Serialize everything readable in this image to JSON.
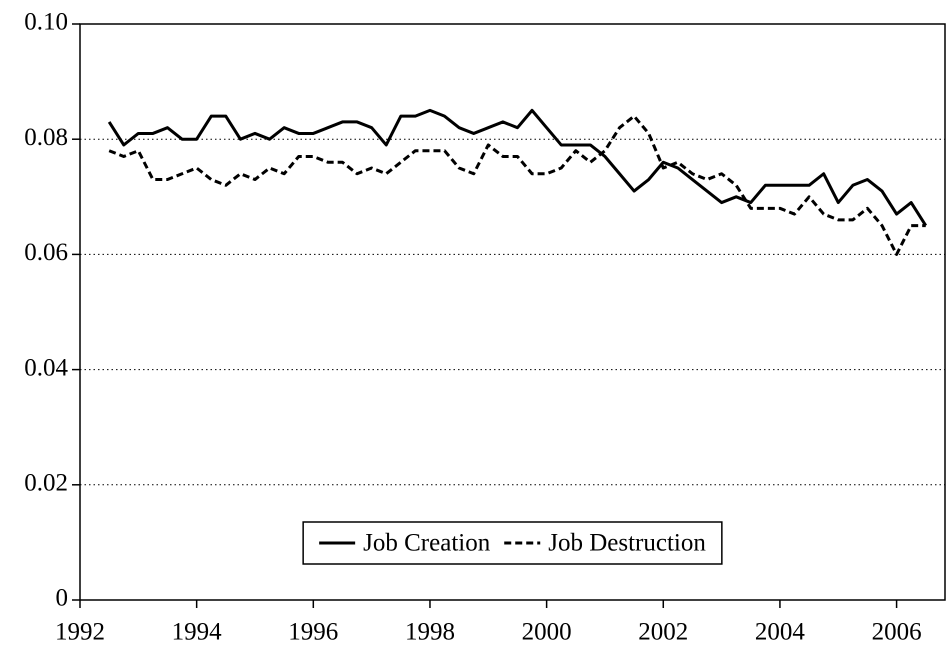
{
  "chart_data": {
    "type": "line",
    "x": [
      1992.5,
      1992.75,
      1993,
      1993.25,
      1993.5,
      1993.75,
      1994,
      1994.25,
      1994.5,
      1994.75,
      1995,
      1995.25,
      1995.5,
      1995.75,
      1996,
      1996.25,
      1996.5,
      1996.75,
      1997,
      1997.25,
      1997.5,
      1997.75,
      1998,
      1998.25,
      1998.5,
      1998.75,
      1999,
      1999.25,
      1999.5,
      1999.75,
      2000,
      2000.25,
      2000.5,
      2000.75,
      2001,
      2001.25,
      2001.5,
      2001.75,
      2002,
      2002.25,
      2002.5,
      2002.75,
      2003,
      2003.25,
      2003.5,
      2003.75,
      2004,
      2004.25,
      2004.5,
      2004.75,
      2005,
      2005.25,
      2005.5,
      2005.75,
      2006,
      2006.25,
      2006.5
    ],
    "series": [
      {
        "name": "Job Creation",
        "color": "#000000",
        "style": "solid",
        "values": [
          0.083,
          0.079,
          0.081,
          0.081,
          0.082,
          0.08,
          0.08,
          0.084,
          0.084,
          0.08,
          0.081,
          0.08,
          0.082,
          0.081,
          0.081,
          0.082,
          0.083,
          0.083,
          0.082,
          0.079,
          0.084,
          0.084,
          0.085,
          0.084,
          0.082,
          0.081,
          0.082,
          0.083,
          0.082,
          0.085,
          0.082,
          0.079,
          0.079,
          0.079,
          0.077,
          0.074,
          0.071,
          0.073,
          0.076,
          0.075,
          0.073,
          0.071,
          0.069,
          0.07,
          0.069,
          0.072,
          0.072,
          0.072,
          0.072,
          0.074,
          0.069,
          0.072,
          0.073,
          0.071,
          0.067,
          0.069,
          0.065
        ]
      },
      {
        "name": "Job Destruction",
        "color": "#000000",
        "style": "dashed",
        "values": [
          0.078,
          0.077,
          0.078,
          0.073,
          0.073,
          0.074,
          0.075,
          0.073,
          0.072,
          0.074,
          0.073,
          0.075,
          0.074,
          0.077,
          0.077,
          0.076,
          0.076,
          0.074,
          0.075,
          0.074,
          0.076,
          0.078,
          0.078,
          0.078,
          0.075,
          0.074,
          0.079,
          0.077,
          0.077,
          0.074,
          0.074,
          0.075,
          0.078,
          0.076,
          0.078,
          0.082,
          0.084,
          0.081,
          0.075,
          0.076,
          0.074,
          0.073,
          0.074,
          0.072,
          0.068,
          0.068,
          0.068,
          0.067,
          0.07,
          0.067,
          0.066,
          0.066,
          0.068,
          0.065,
          0.06,
          0.065,
          0.065
        ]
      }
    ],
    "xlim": [
      1992,
      2006.83
    ],
    "xticks": [
      1992,
      1994,
      1996,
      1998,
      2000,
      2002,
      2004,
      2006
    ],
    "ylim": [
      0,
      0.1
    ],
    "yticks": [
      0,
      0.02,
      0.04,
      0.06,
      0.08,
      {
        "value": 0.1,
        "label": "0.10"
      }
    ],
    "grid": true,
    "legend": "bottom"
  }
}
